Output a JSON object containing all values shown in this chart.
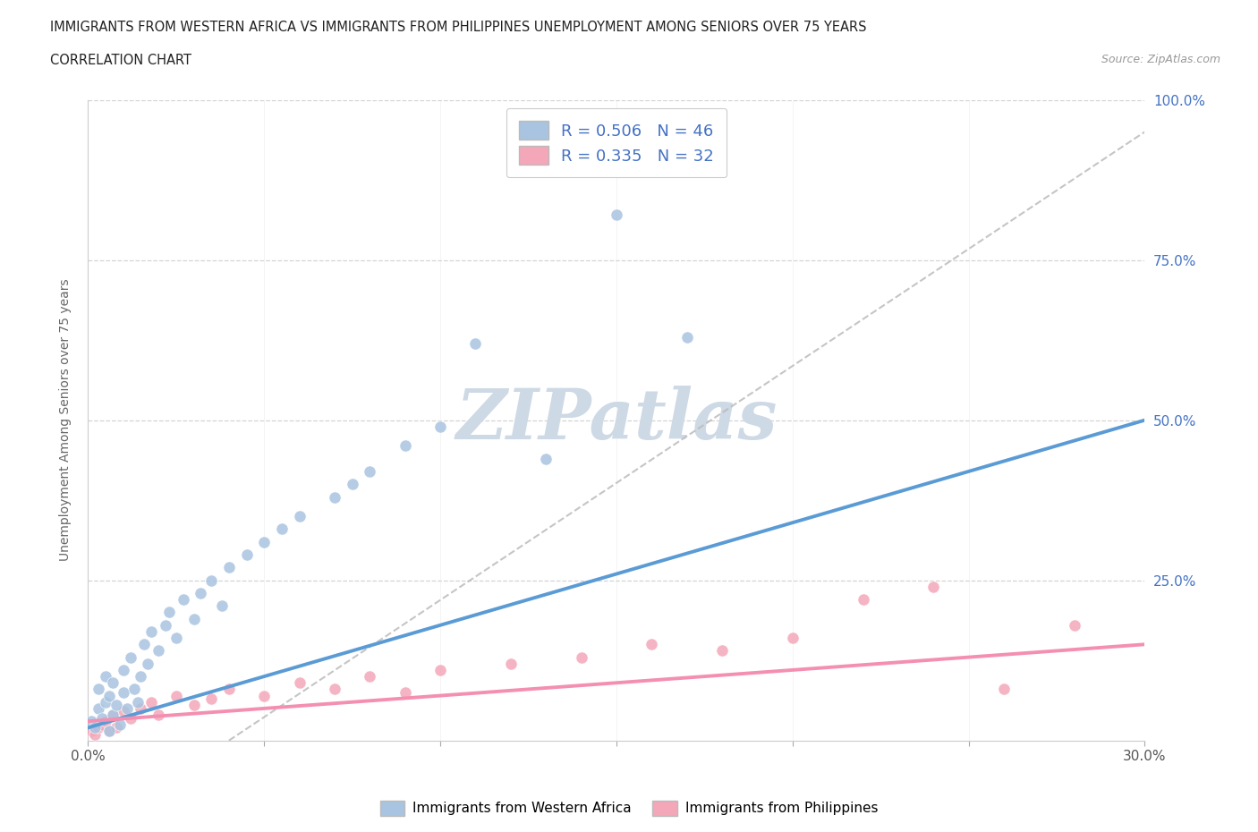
{
  "title_line1": "IMMIGRANTS FROM WESTERN AFRICA VS IMMIGRANTS FROM PHILIPPINES UNEMPLOYMENT AMONG SENIORS OVER 75 YEARS",
  "title_line2": "CORRELATION CHART",
  "source_text": "Source: ZipAtlas.com",
  "ylabel": "Unemployment Among Seniors over 75 years",
  "xmin": 0.0,
  "xmax": 0.3,
  "ymin": 0.0,
  "ymax": 1.0,
  "legend_label1": "Immigrants from Western Africa",
  "legend_label2": "Immigrants from Philippines",
  "R1": "0.506",
  "N1": "46",
  "R2": "0.335",
  "N2": "32",
  "color_blue": "#a8c4e0",
  "color_pink": "#f4a7b9",
  "color_blue_line": "#5b9bd5",
  "color_pink_line": "#f48fb1",
  "color_blue_text": "#4472c4",
  "watermark_color": "#cdd9e5",
  "grid_color": "#d0d0d0",
  "blue_scatter_x": [
    0.001,
    0.002,
    0.003,
    0.003,
    0.004,
    0.005,
    0.005,
    0.006,
    0.006,
    0.007,
    0.007,
    0.008,
    0.009,
    0.01,
    0.01,
    0.011,
    0.012,
    0.013,
    0.014,
    0.015,
    0.016,
    0.017,
    0.018,
    0.02,
    0.022,
    0.023,
    0.025,
    0.027,
    0.03,
    0.032,
    0.035,
    0.038,
    0.04,
    0.045,
    0.05,
    0.055,
    0.06,
    0.07,
    0.075,
    0.08,
    0.09,
    0.1,
    0.11,
    0.13,
    0.15,
    0.17
  ],
  "blue_scatter_y": [
    0.03,
    0.02,
    0.05,
    0.08,
    0.035,
    0.06,
    0.1,
    0.015,
    0.07,
    0.04,
    0.09,
    0.055,
    0.025,
    0.075,
    0.11,
    0.05,
    0.13,
    0.08,
    0.06,
    0.1,
    0.15,
    0.12,
    0.17,
    0.14,
    0.18,
    0.2,
    0.16,
    0.22,
    0.19,
    0.23,
    0.25,
    0.21,
    0.27,
    0.29,
    0.31,
    0.33,
    0.35,
    0.38,
    0.4,
    0.42,
    0.46,
    0.49,
    0.62,
    0.44,
    0.82,
    0.63
  ],
  "pink_scatter_x": [
    0.001,
    0.002,
    0.003,
    0.004,
    0.005,
    0.006,
    0.007,
    0.008,
    0.01,
    0.012,
    0.015,
    0.018,
    0.02,
    0.025,
    0.03,
    0.035,
    0.04,
    0.05,
    0.06,
    0.07,
    0.08,
    0.09,
    0.1,
    0.12,
    0.14,
    0.16,
    0.18,
    0.2,
    0.22,
    0.24,
    0.26,
    0.28
  ],
  "pink_scatter_y": [
    0.015,
    0.01,
    0.02,
    0.025,
    0.03,
    0.015,
    0.04,
    0.02,
    0.045,
    0.035,
    0.05,
    0.06,
    0.04,
    0.07,
    0.055,
    0.065,
    0.08,
    0.07,
    0.09,
    0.08,
    0.1,
    0.075,
    0.11,
    0.12,
    0.13,
    0.15,
    0.14,
    0.16,
    0.22,
    0.24,
    0.08,
    0.18
  ],
  "blue_line_x": [
    0.0,
    0.3
  ],
  "blue_line_y": [
    0.02,
    0.5
  ],
  "pink_line_x": [
    0.0,
    0.3
  ],
  "pink_line_y": [
    0.03,
    0.15
  ],
  "dash_line_x": [
    0.04,
    0.3
  ],
  "dash_line_y": [
    0.0,
    0.95
  ]
}
